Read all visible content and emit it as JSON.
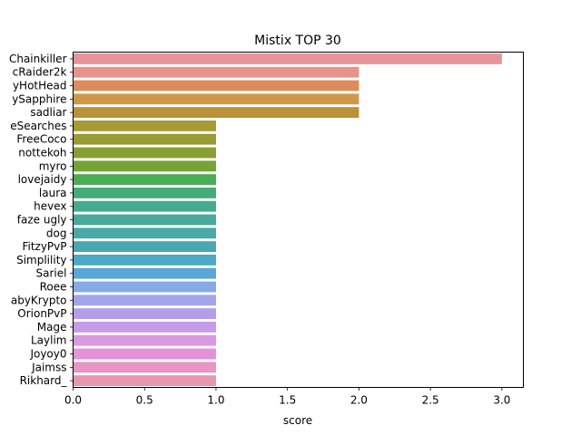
{
  "chart_data": {
    "type": "bar",
    "orientation": "horizontal",
    "title": "Mistix TOP 30",
    "xlabel": "score",
    "ylabel": "",
    "xlim": [
      0,
      3.15
    ],
    "xticks": [
      0.0,
      0.5,
      1.0,
      1.5,
      2.0,
      2.5,
      3.0
    ],
    "xtick_labels": [
      "0.0",
      "0.5",
      "1.0",
      "1.5",
      "2.0",
      "2.5",
      "3.0"
    ],
    "grid": false,
    "categories": [
      "Chainkiller",
      "cRaider2k",
      "yHotHead",
      "ySapphire",
      "sadliar",
      "eSearches",
      "FreeCoco",
      "nottekoh",
      "myro",
      "lovejaidy",
      "laura",
      "hevex",
      "faze ugly",
      "dog",
      "FitzyPvP",
      "Simplility",
      "Sariel",
      "Roee",
      "abyKrypto",
      "OrionPvP",
      "Mage",
      "Laylim",
      "Joyoy0",
      "Jaimss",
      "Rikhard_"
    ],
    "values": [
      3,
      2,
      2,
      2,
      2,
      1,
      1,
      1,
      1,
      1,
      1,
      1,
      1,
      1,
      1,
      1,
      1,
      1,
      1,
      1,
      1,
      1,
      1,
      1,
      1
    ],
    "colors": [
      "#e8939b",
      "#e8938a",
      "#de8b5c",
      "#cf9848",
      "#bb9138",
      "#a69a35",
      "#979c33",
      "#889f33",
      "#74a435",
      "#4aad54",
      "#44ac78",
      "#46ab8c",
      "#47aa9a",
      "#48a9a6",
      "#49a7b4",
      "#4da7c6",
      "#59a6d8",
      "#86aae6",
      "#a3a5ea",
      "#b59ee9",
      "#c69be7",
      "#d998e2",
      "#e691d8",
      "#e795c4",
      "#e796b0"
    ]
  }
}
